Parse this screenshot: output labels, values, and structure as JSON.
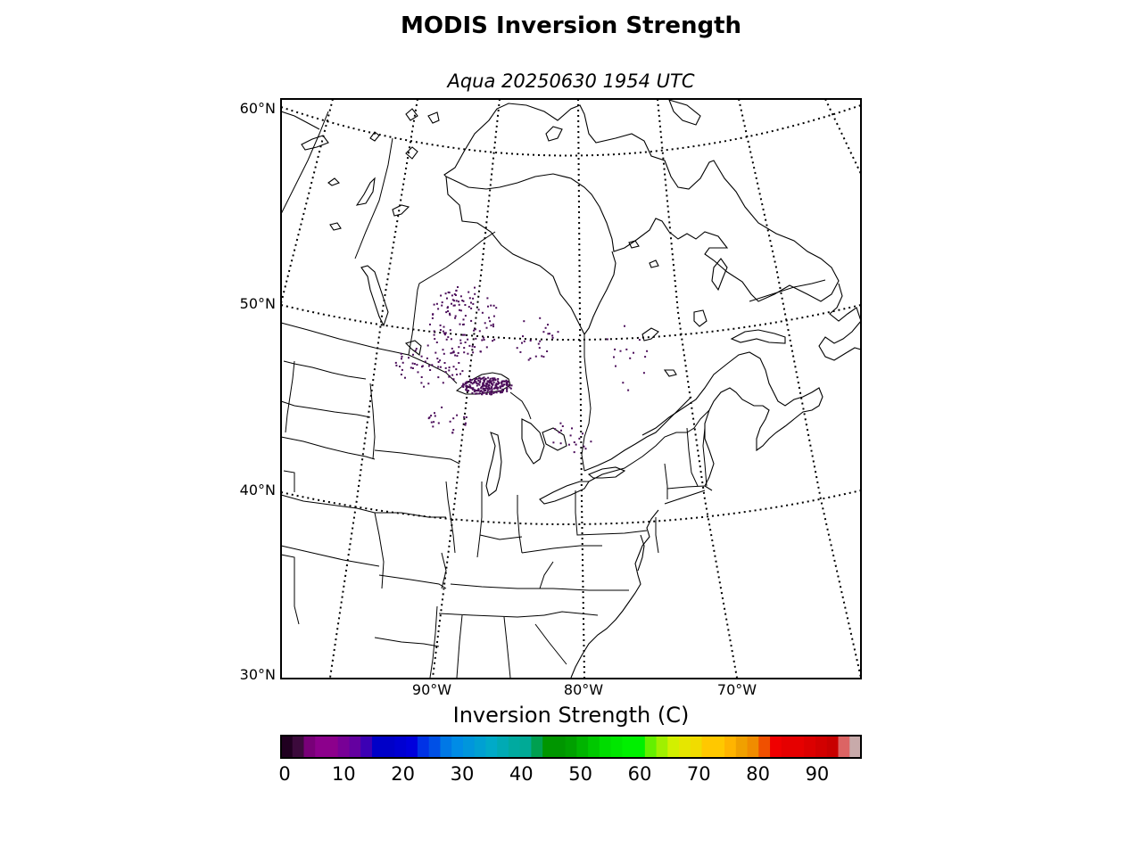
{
  "title": "MODIS Inversion Strength",
  "subtitle": "Aqua 20250630 1954 UTC",
  "map": {
    "projection": "lambert-conformal",
    "parallels_dotted": true,
    "meridians_dotted": true,
    "lat_labels": [
      "60°N",
      "50°N",
      "40°N",
      "30°N"
    ],
    "lon_labels": [
      "90°W",
      "80°W",
      "70°W"
    ],
    "data_color": "#4b0d5a",
    "outline_color": "#000000"
  },
  "colorbar": {
    "label": "Inversion Strength (C)",
    "min": 0,
    "max": 98,
    "tick_labels": [
      "0",
      "10",
      "20",
      "30",
      "40",
      "50",
      "60",
      "70",
      "80",
      "90"
    ],
    "tick_values": [
      0,
      10,
      20,
      30,
      40,
      50,
      60,
      70,
      80,
      90
    ],
    "colors": [
      "#200020",
      "#3c0a3c",
      "#780078",
      "#8c008c",
      "#8c008c",
      "#780096",
      "#6400a0",
      "#3c00b4",
      "#0000c8",
      "#0000c8",
      "#0000d2",
      "#0000dc",
      "#0032e6",
      "#0050e6",
      "#0078e6",
      "#008ce6",
      "#0096dc",
      "#00a0d2",
      "#00aac8",
      "#00aab4",
      "#00aaa0",
      "#00aa96",
      "#00a050",
      "#009600",
      "#009600",
      "#00a000",
      "#00b400",
      "#00c800",
      "#00dc00",
      "#00e600",
      "#00f000",
      "#00f000",
      "#64f000",
      "#a0f000",
      "#d2f000",
      "#e6e600",
      "#f0dc00",
      "#ffc800",
      "#ffc800",
      "#ffb400",
      "#f0a000",
      "#f08c00",
      "#f05000",
      "#f00000",
      "#e60000",
      "#e60000",
      "#dc0000",
      "#d20000",
      "#c80000",
      "#dc6464",
      "#c8aaaa"
    ]
  }
}
